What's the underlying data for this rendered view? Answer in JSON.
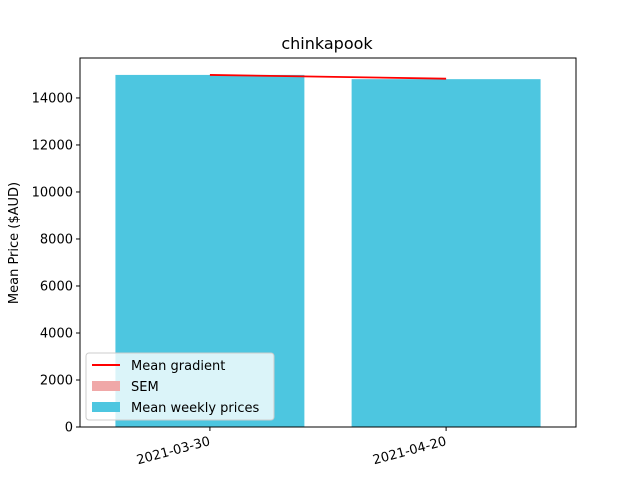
{
  "chart_data": {
    "type": "bar",
    "title": "chinkapook",
    "xlabel": "",
    "ylabel": "Mean Price ($AUD)",
    "categories": [
      "2021-03-30",
      "2021-04-20"
    ],
    "series": [
      {
        "name": "Mean weekly prices",
        "type": "bar",
        "values": [
          14980,
          14800
        ],
        "color": "#4dc6e0"
      },
      {
        "name": "SEM",
        "type": "errorbar",
        "values": [
          0,
          0
        ],
        "color": "#f0a8a8"
      },
      {
        "name": "Mean gradient",
        "type": "line",
        "values": [
          14980,
          14820
        ],
        "color": "#ff0000"
      }
    ],
    "ylim": [
      0,
      15700
    ],
    "yticks": [
      0,
      2000,
      4000,
      6000,
      8000,
      10000,
      12000,
      14000
    ],
    "ytick_labels": [
      "0",
      "2000",
      "4000",
      "6000",
      "8000",
      "10000",
      "12000",
      "14000"
    ],
    "grid": false,
    "legend_position": "lower-left",
    "legend": [
      "Mean gradient",
      "SEM",
      "Mean weekly prices"
    ]
  }
}
